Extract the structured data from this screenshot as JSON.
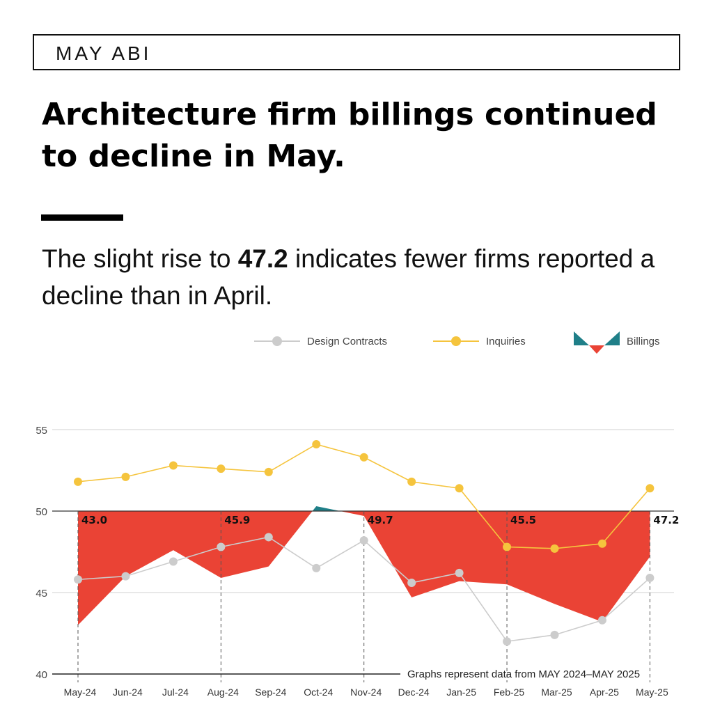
{
  "header": {
    "tag": "MAY ABI"
  },
  "headline": {
    "line1": "Architecture firm billings continued",
    "line2": "to decline in May."
  },
  "subhead": {
    "pre": "The slight rise to ",
    "value": "47.2",
    "post": " indicates fewer firms reported a decline than in April."
  },
  "legend": {
    "design_contracts": "Design Contracts",
    "inquiries": "Inquiries",
    "billings": "Billings"
  },
  "colors": {
    "design_contracts": "#cccccc",
    "inquiries": "#f5c43d",
    "billings_below": "#ea4335",
    "billings_above": "#1f7f88",
    "grid": "#d0d0d0",
    "axis": "#222222"
  },
  "chart_data": {
    "type": "line",
    "categories": [
      "May-24",
      "Jun-24",
      "Jul-24",
      "Aug-24",
      "Sep-24",
      "Oct-24",
      "Nov-24",
      "Dec-24",
      "Jan-25",
      "Feb-25",
      "Mar-25",
      "Apr-25",
      "May-25"
    ],
    "ylim": [
      40,
      55
    ],
    "yticks": [
      40,
      45,
      50,
      55
    ],
    "baseline": 50,
    "series": [
      {
        "name": "Design Contracts",
        "values": [
          45.8,
          46.0,
          46.9,
          47.8,
          48.4,
          46.5,
          48.2,
          45.6,
          46.2,
          42.0,
          42.4,
          43.3,
          45.9
        ]
      },
      {
        "name": "Inquiries",
        "values": [
          51.8,
          52.1,
          52.8,
          52.6,
          52.4,
          54.1,
          53.3,
          51.8,
          51.4,
          47.8,
          47.7,
          48.0,
          51.4
        ]
      },
      {
        "name": "Billings",
        "values": [
          43.0,
          46.0,
          47.6,
          45.9,
          46.6,
          50.3,
          49.7,
          44.7,
          45.7,
          45.5,
          44.3,
          43.2,
          47.2
        ]
      }
    ],
    "annotations": [
      {
        "index": 0,
        "label": "43.0"
      },
      {
        "index": 3,
        "label": "45.9"
      },
      {
        "index": 6,
        "label": "49.7"
      },
      {
        "index": 9,
        "label": "45.5"
      },
      {
        "index": 12,
        "label": "47.2"
      }
    ],
    "note": "Graphs represent data from MAY 2024–MAY 2025",
    "grid": true
  }
}
